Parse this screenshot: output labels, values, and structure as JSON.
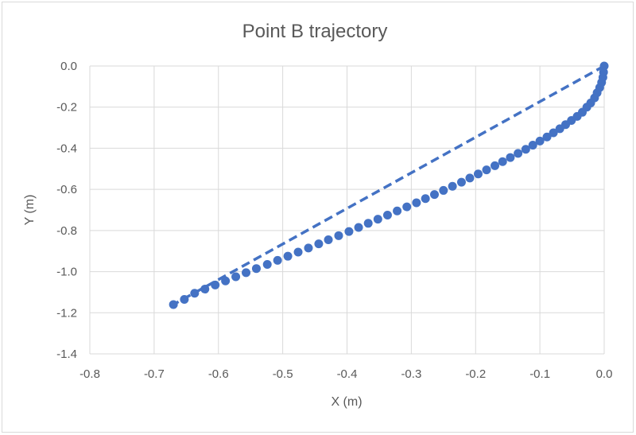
{
  "chart_data": {
    "type": "scatter",
    "title": "Point B trajectory",
    "xlabel": "X (m)",
    "ylabel": "Y (m)",
    "xlim": [
      -0.8,
      0.0
    ],
    "ylim": [
      -1.4,
      0.0
    ],
    "x_ticks": [
      "-0.8",
      "-0.7",
      "-0.6",
      "-0.5",
      "-0.4",
      "-0.3",
      "-0.2",
      "-0.1",
      "0.0"
    ],
    "y_ticks": [
      "0.0",
      "-0.2",
      "-0.4",
      "-0.6",
      "-0.8",
      "-1.0",
      "-1.2",
      "-1.4"
    ],
    "grid": true,
    "legend": "none",
    "colors": {
      "series": "#4472c4",
      "grid": "#d9d9d9",
      "text": "#595959"
    },
    "series": [
      {
        "type": "scatter",
        "x": [
          0.0,
          -0.001,
          -0.002,
          -0.004,
          -0.007,
          -0.011,
          -0.015,
          -0.021,
          -0.027,
          -0.034,
          -0.042,
          -0.051,
          -0.06,
          -0.069,
          -0.079,
          -0.089,
          -0.1,
          -0.111,
          -0.122,
          -0.134,
          -0.146,
          -0.158,
          -0.17,
          -0.183,
          -0.196,
          -0.209,
          -0.222,
          -0.236,
          -0.25,
          -0.264,
          -0.278,
          -0.292,
          -0.307,
          -0.322,
          -0.337,
          -0.352,
          -0.367,
          -0.382,
          -0.397,
          -0.413,
          -0.429,
          -0.444,
          -0.46,
          -0.476,
          -0.492,
          -0.508,
          -0.524,
          -0.541,
          -0.557,
          -0.573,
          -0.589,
          -0.605,
          -0.621,
          -0.637,
          -0.653,
          -0.67
        ],
        "y": [
          0.0,
          -0.03,
          -0.055,
          -0.08,
          -0.105,
          -0.13,
          -0.155,
          -0.18,
          -0.2,
          -0.225,
          -0.245,
          -0.265,
          -0.285,
          -0.305,
          -0.325,
          -0.345,
          -0.365,
          -0.385,
          -0.405,
          -0.425,
          -0.445,
          -0.465,
          -0.485,
          -0.505,
          -0.525,
          -0.545,
          -0.565,
          -0.585,
          -0.605,
          -0.625,
          -0.645,
          -0.665,
          -0.685,
          -0.705,
          -0.725,
          -0.745,
          -0.765,
          -0.785,
          -0.805,
          -0.825,
          -0.845,
          -0.865,
          -0.885,
          -0.905,
          -0.925,
          -0.945,
          -0.965,
          -0.985,
          -1.005,
          -1.025,
          -1.045,
          -1.065,
          -1.085,
          -1.105,
          -1.135,
          -1.16
        ]
      },
      {
        "type": "line",
        "style": "dashed",
        "x": [
          0.0,
          -0.67
        ],
        "y": [
          0.0,
          -1.16
        ]
      }
    ]
  }
}
